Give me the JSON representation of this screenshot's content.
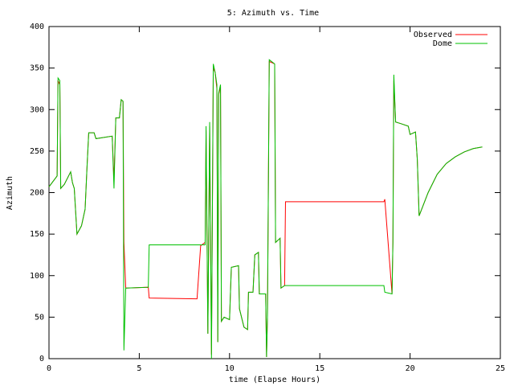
{
  "chart_data": {
    "type": "line",
    "title": "5: Azimuth vs. Time",
    "x_label": "time (Elapse Hours)",
    "y_label": "Azimuth",
    "x": [
      0,
      0.45,
      0.5,
      0.6,
      0.65,
      0.85,
      1.2,
      1.3,
      1.4,
      1.55,
      1.8,
      2.0,
      2.1,
      2.2,
      2.5,
      2.6,
      3.5,
      3.6,
      3.7,
      3.9,
      4.0,
      4.1,
      4.15,
      4.25,
      5.5,
      5.55,
      8.2,
      8.4,
      8.65,
      8.7,
      8.8,
      8.9,
      9.0,
      9.1,
      9.2,
      9.3,
      9.35,
      9.4,
      9.5,
      9.55,
      9.7,
      10.0,
      10.1,
      10.5,
      10.55,
      10.8,
      11.0,
      11.05,
      11.3,
      11.4,
      11.6,
      11.65,
      12.0,
      12.05,
      12.1,
      12.2,
      12.5,
      12.55,
      12.8,
      12.85,
      13.05,
      13.1,
      18.55,
      18.6,
      19.0,
      19.05,
      19.1,
      19.2,
      19.5,
      19.9,
      20.0,
      20.3,
      20.4,
      20.5,
      21,
      21.5,
      22,
      22.5,
      23,
      23.5,
      24
    ],
    "series": [
      {
        "name": "Observed",
        "color": "#ff0000",
        "values": [
          207,
          220,
          335,
          330,
          205,
          210,
          225,
          212,
          205,
          150,
          160,
          180,
          228,
          272,
          272,
          265,
          268,
          215,
          290,
          290,
          312,
          310,
          140,
          85,
          86,
          73,
          72,
          136,
          140,
          275,
          30,
          280,
          5,
          350,
          345,
          325,
          20,
          318,
          328,
          45,
          50,
          47,
          110,
          112,
          60,
          38,
          35,
          80,
          80,
          125,
          128,
          78,
          78,
          2,
          50,
          358,
          355,
          140,
          145,
          85,
          88,
          189,
          189,
          192,
          78,
          140,
          335,
          285,
          283,
          280,
          270,
          273,
          240,
          172,
          200,
          222,
          235,
          243,
          249,
          253,
          255
        ]
      },
      {
        "name": "Dome",
        "color": "#00c000",
        "values": [
          207,
          220,
          338,
          335,
          205,
          210,
          225,
          212,
          205,
          150,
          160,
          180,
          228,
          272,
          272,
          265,
          268,
          205,
          290,
          290,
          312,
          310,
          10,
          85,
          86,
          137,
          137,
          137,
          137,
          280,
          30,
          285,
          0,
          355,
          345,
          330,
          20,
          320,
          330,
          45,
          50,
          47,
          110,
          112,
          60,
          38,
          35,
          80,
          80,
          125,
          128,
          78,
          78,
          2,
          50,
          360,
          355,
          140,
          145,
          85,
          88,
          88,
          88,
          80,
          78,
          140,
          342,
          285,
          283,
          280,
          270,
          273,
          240,
          172,
          200,
          222,
          235,
          243,
          249,
          253,
          255
        ]
      }
    ],
    "xlim": [
      0,
      25
    ],
    "xticks": [
      0,
      5,
      10,
      15,
      20,
      25
    ],
    "ylim": [
      0,
      400
    ],
    "yticks": [
      0,
      50,
      100,
      150,
      200,
      250,
      300,
      350,
      400
    ],
    "legend": "top-right"
  }
}
